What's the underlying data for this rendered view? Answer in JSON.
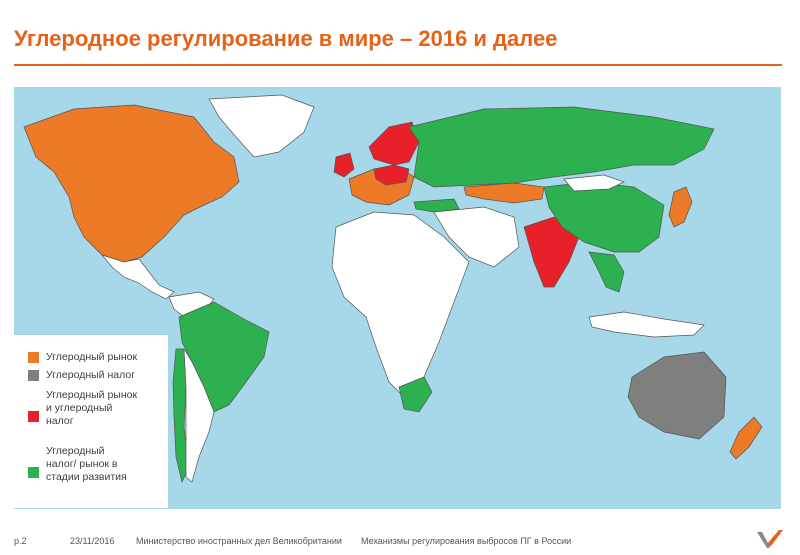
{
  "title": "Углеродное регулирование в мире – 2016 и далее",
  "colors": {
    "carbon_market": "#ec7a27",
    "carbon_tax": "#7f7f7f",
    "market_and_tax": "#e8202a",
    "in_development": "#2db04f",
    "ocean": "#a6d8ea",
    "land_unregulated": "#ffffff",
    "accent": "#e5621a"
  },
  "legend": [
    {
      "key": "carbon_market",
      "label": "Углеродный рынок"
    },
    {
      "key": "carbon_tax",
      "label": "Углеродный налог"
    },
    {
      "key": "market_and_tax",
      "label": "Углеродный рынок\nи углеродный\nналог"
    },
    {
      "key": "in_development",
      "label": "Углеродный\nналог/ рынок в\nстадии развития"
    }
  ],
  "footer": {
    "page": "p.2",
    "date": "23/11/2016",
    "source": "Министерство иностранных дел Великобритании",
    "doc": "Механизмы регулирования выбросов ПГ в России"
  },
  "logo_icon": "check-v-logo-icon"
}
